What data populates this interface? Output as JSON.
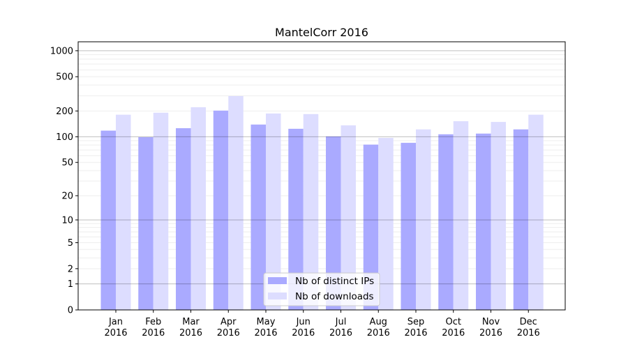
{
  "chart_data": {
    "type": "bar",
    "title": "MantelCorr 2016",
    "xlabel": "",
    "ylabel": "",
    "yscale": "symlog (log10(1+y))",
    "ylim": [
      0,
      1270
    ],
    "yticks": [
      0,
      1,
      2,
      5,
      10,
      20,
      50,
      100,
      200,
      500,
      1000
    ],
    "grid": true,
    "legend_position": "bottom-center",
    "categories": [
      "Jan\n2016",
      "Feb\n2016",
      "Mar\n2016",
      "Apr\n2016",
      "May\n2016",
      "Jun\n2016",
      "Jul\n2016",
      "Aug\n2016",
      "Sep\n2016",
      "Oct\n2016",
      "Nov\n2016",
      "Dec\n2016"
    ],
    "series": [
      {
        "name": "Nb of distinct IPs",
        "color": "#aaaaff",
        "values": [
          118,
          99,
          126,
          202,
          139,
          124,
          101,
          81,
          85,
          107,
          109,
          122
        ]
      },
      {
        "name": "Nb of downloads",
        "color": "#ddddff",
        "values": [
          181,
          191,
          221,
          298,
          187,
          184,
          136,
          97,
          122,
          152,
          149,
          181
        ]
      }
    ]
  }
}
